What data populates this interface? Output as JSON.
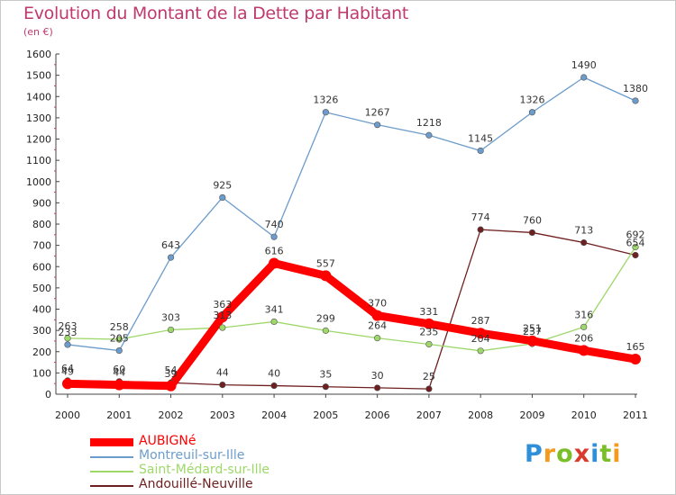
{
  "title": "Evolution du Montant de la Dette par Habitant",
  "unit": "(en €)",
  "brand": {
    "letters": [
      "P",
      "r",
      "o",
      "x",
      "i",
      "t",
      "i"
    ],
    "colors": [
      "#2f8fd8",
      "#f39a1f",
      "#7abf2a",
      "#d93a2b",
      "#2f8fd8",
      "#7abf2a",
      "#f39a1f"
    ]
  },
  "chart_data": {
    "type": "line",
    "title": "Evolution du Montant de la Dette par Habitant",
    "ylabel": "(en €)",
    "x": [
      "2000",
      "2001",
      "2002",
      "2003",
      "2004",
      "2005",
      "2006",
      "2007",
      "2008",
      "2009",
      "2010",
      "2011"
    ],
    "ylim": [
      0,
      1600
    ],
    "yticks": [
      0,
      100,
      200,
      300,
      400,
      500,
      600,
      700,
      800,
      900,
      1000,
      1100,
      1200,
      1300,
      1400,
      1500,
      1600
    ],
    "legend_position": "bottom-left",
    "series": [
      {
        "name": "Andouillé-Neuville",
        "color": "#6e1f1f",
        "values": [
          64,
          60,
          54,
          44,
          40,
          35,
          30,
          25,
          774,
          760,
          713,
          654
        ]
      },
      {
        "name": "Saint-Médard-sur-Ille",
        "color": "#9ed86a",
        "values": [
          263,
          258,
          303,
          313,
          341,
          299,
          264,
          235,
          204,
          237,
          316,
          692
        ]
      },
      {
        "name": "Montreuil-sur-Ille",
        "color": "#6c9ccb",
        "values": [
          233,
          205,
          643,
          925,
          740,
          1326,
          1267,
          1218,
          1145,
          1326,
          1490,
          1380
        ]
      },
      {
        "name": "AUBIGNé",
        "color": "#ff0000",
        "values": [
          49,
          44,
          39,
          363,
          616,
          557,
          370,
          331,
          287,
          251,
          206,
          165
        ]
      }
    ],
    "legend": [
      "AUBIGNé",
      "Montreuil-sur-Ille",
      "Saint-Médard-sur-Ille",
      "Andouillé-Neuville"
    ]
  }
}
